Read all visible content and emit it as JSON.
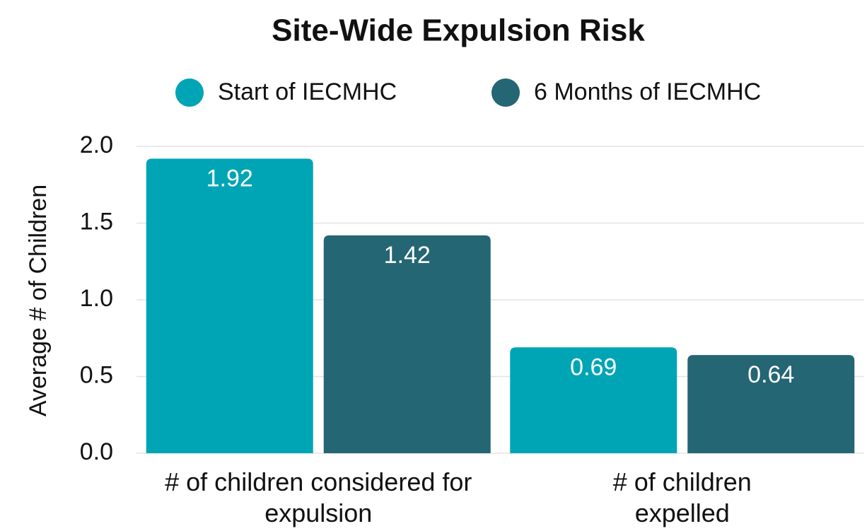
{
  "chart_data": {
    "type": "bar",
    "title": "Site-Wide Expulsion Risk",
    "y_label": "Average # of Children",
    "categories": [
      "# of children considered for expulsion",
      "# of children expelled"
    ],
    "series": [
      {
        "name": "Start of IECMHC",
        "color": "#00a5b5",
        "values": [
          1.92,
          0.69
        ]
      },
      {
        "name": "6 Months of IECMHC",
        "color": "#246673",
        "values": [
          1.42,
          0.64
        ]
      }
    ],
    "ylim": [
      0,
      2
    ],
    "yticks": [
      {
        "value": 0,
        "label": "0.0"
      },
      0.5,
      {
        "value": 1,
        "label": "1.0"
      },
      1.5,
      {
        "value": 2,
        "label": "2.0"
      }
    ],
    "grid": true,
    "legend": "top"
  }
}
